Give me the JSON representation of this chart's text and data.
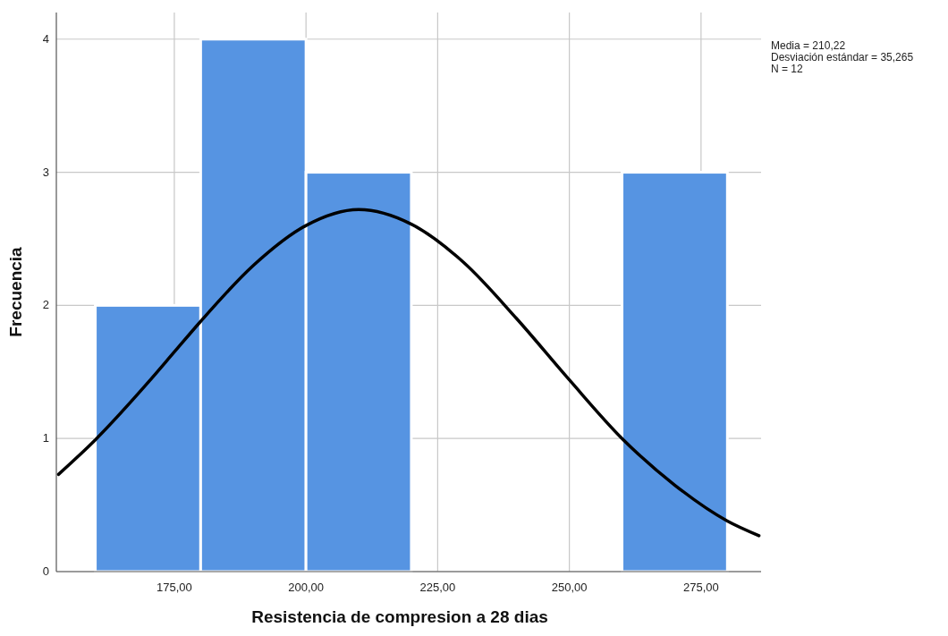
{
  "chart_data": {
    "type": "histogram",
    "xlabel": "Resistencia de compresion a 28 dias",
    "ylabel": "Frecuencia",
    "bins": [
      160,
      180,
      200,
      220,
      240,
      260,
      280
    ],
    "values": [
      2,
      4,
      3,
      0,
      0,
      3
    ],
    "color": "#5694e2",
    "series": [
      {
        "type": "line",
        "color": "#000000",
        "x": [
          153,
          160,
          170,
          175,
          180,
          190,
          200,
          210,
          220,
          230,
          240,
          250,
          260,
          270,
          280,
          286
        ],
        "values": [
          0.73,
          0.99,
          1.42,
          1.65,
          1.88,
          2.3,
          2.6,
          2.72,
          2.61,
          2.32,
          1.9,
          1.44,
          1,
          0.65,
          0.38,
          0.27
        ]
      }
    ],
    "xlim": [
      152.6,
      286.4
    ],
    "ylim": [
      0,
      4.2
    ],
    "xticks": [
      {
        "value": 175,
        "label": "175,00"
      },
      {
        "value": 200,
        "label": "200,00"
      },
      {
        "value": 225,
        "label": "225,00"
      },
      {
        "value": 250,
        "label": "250,00"
      },
      {
        "value": 275,
        "label": "275,00"
      }
    ],
    "yticks": [
      0,
      1,
      2,
      3,
      4
    ],
    "grid": true,
    "marker": "none",
    "line_style": "solid",
    "annotations": [
      "Media = 210,22",
      "Desviación estándar = 35,265",
      "N = 12"
    ]
  }
}
